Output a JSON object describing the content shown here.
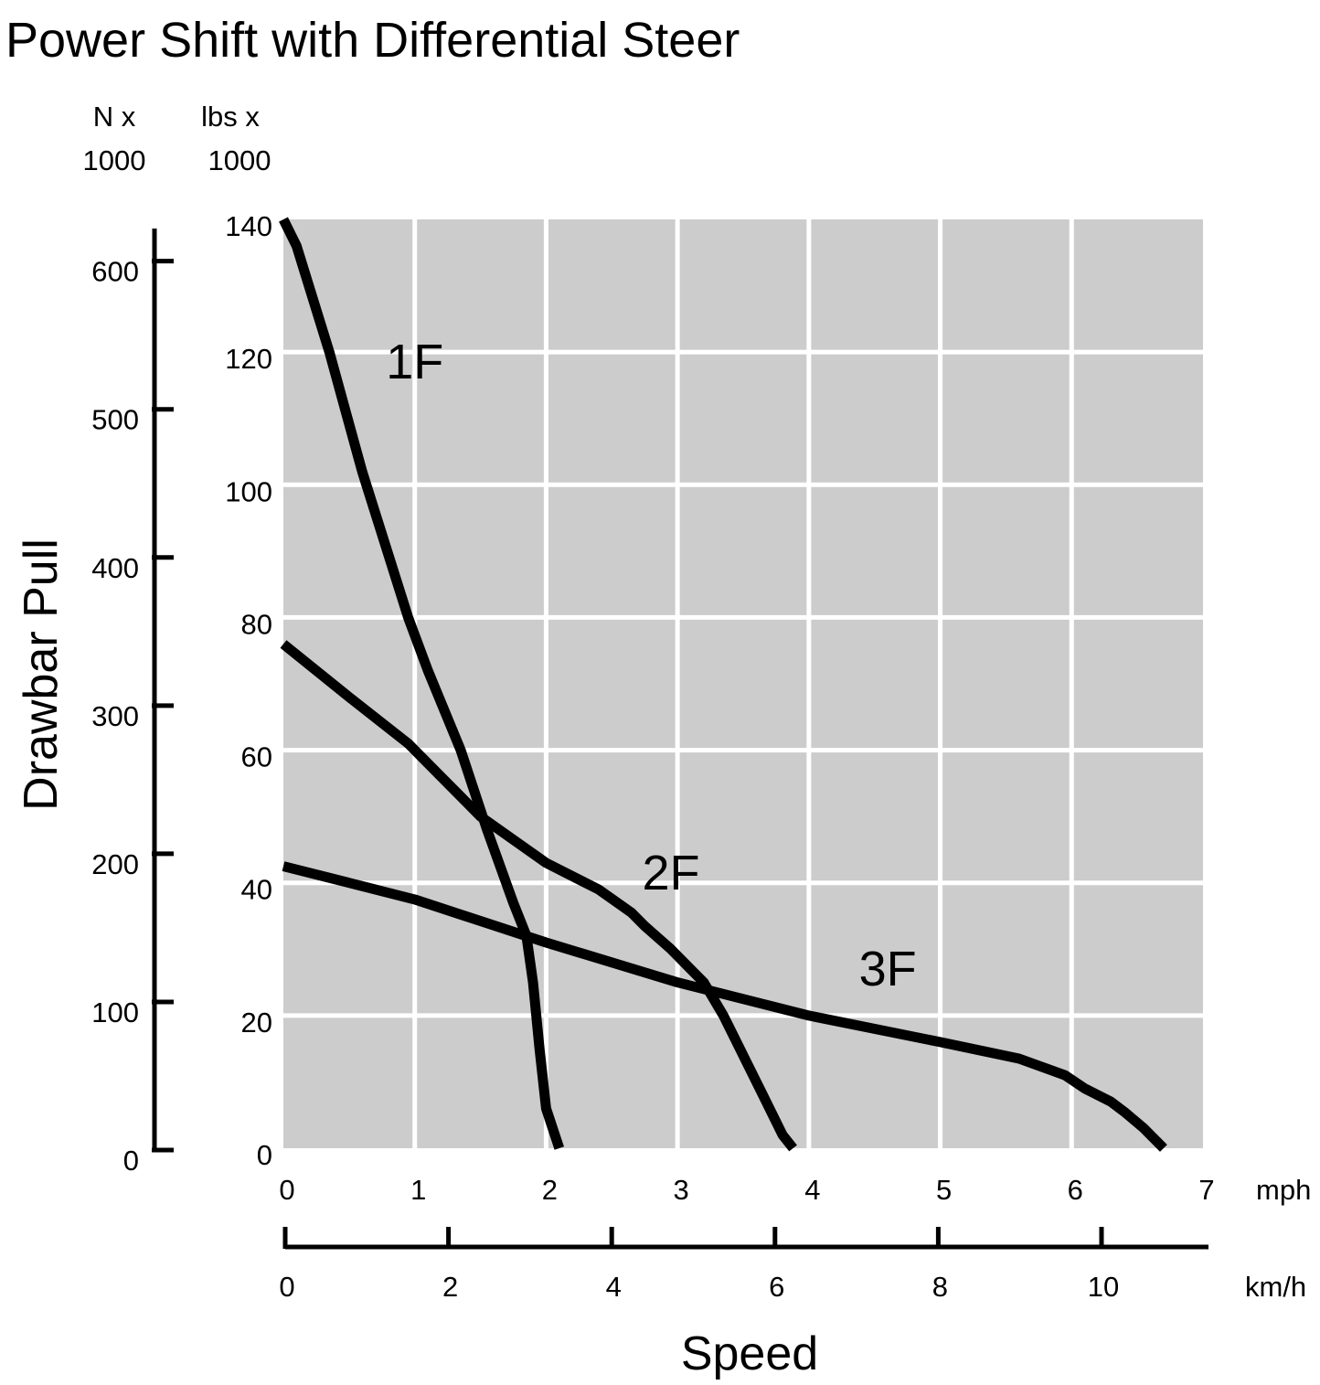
{
  "chart_data": {
    "type": "line",
    "title": "Power Shift with Differential Steer",
    "ylabel": "Drawbar Pull",
    "xlabel": "Speed",
    "x_unit": "mph",
    "x_unit_secondary": "km/h",
    "y_unit_secondary_line1": "lbs x",
    "y_unit_secondary_line2": "1000",
    "y_unit_primary_line1": "N x",
    "y_unit_primary_line2": "1000",
    "xlim": [
      0,
      7
    ],
    "ylim": [
      0,
      140
    ],
    "x_ticks": [
      "0",
      "1",
      "2",
      "3",
      "4",
      "5",
      "6",
      "7"
    ],
    "y_ticks": [
      "0",
      "20",
      "40",
      "60",
      "80",
      "100",
      "120",
      "140"
    ],
    "y_secondary_ticks": [
      "0",
      "100",
      "200",
      "300",
      "400",
      "500",
      "600"
    ],
    "y_secondary_values": [
      0,
      100,
      200,
      300,
      400,
      500,
      600
    ],
    "x_secondary_ticks": [
      "0",
      "2",
      "4",
      "6",
      "8",
      "10"
    ],
    "x_secondary_values": [
      0,
      2,
      4,
      6,
      8,
      10
    ],
    "grid": true,
    "plot_background": "#cccccc",
    "line_color": "#000000",
    "series": [
      {
        "name": "1F",
        "points": [
          [
            0,
            140
          ],
          [
            0.1,
            136
          ],
          [
            0.35,
            120
          ],
          [
            0.6,
            102
          ],
          [
            0.95,
            80
          ],
          [
            1.1,
            72
          ],
          [
            1.35,
            60
          ],
          [
            1.55,
            48
          ],
          [
            1.75,
            37
          ],
          [
            1.85,
            32
          ],
          [
            1.9,
            25
          ],
          [
            1.95,
            15
          ],
          [
            2.0,
            6
          ],
          [
            2.1,
            0
          ]
        ],
        "label_pos": [
          1.0,
          116
        ]
      },
      {
        "name": "2F",
        "points": [
          [
            0,
            76
          ],
          [
            0.5,
            68
          ],
          [
            0.95,
            61
          ],
          [
            1.2,
            56
          ],
          [
            1.5,
            50
          ],
          [
            2.0,
            43
          ],
          [
            2.4,
            39
          ],
          [
            2.65,
            35.5
          ],
          [
            2.75,
            33.5
          ],
          [
            2.95,
            30
          ],
          [
            3.1,
            27
          ],
          [
            3.2,
            25
          ],
          [
            3.35,
            20
          ],
          [
            3.5,
            14
          ],
          [
            3.65,
            8
          ],
          [
            3.8,
            2
          ],
          [
            3.88,
            0
          ]
        ],
        "label_pos": [
          2.95,
          39
        ]
      },
      {
        "name": "3F",
        "points": [
          [
            0,
            42.5
          ],
          [
            0.5,
            40
          ],
          [
            1.0,
            37.5
          ],
          [
            2.0,
            31
          ],
          [
            3.0,
            25
          ],
          [
            4.0,
            20
          ],
          [
            5.0,
            16
          ],
          [
            5.6,
            13.5
          ],
          [
            5.95,
            11
          ],
          [
            6.1,
            9
          ],
          [
            6.3,
            7
          ],
          [
            6.4,
            5.5
          ],
          [
            6.55,
            3
          ],
          [
            6.7,
            0
          ]
        ],
        "label_pos": [
          4.6,
          24.5
        ]
      }
    ]
  }
}
